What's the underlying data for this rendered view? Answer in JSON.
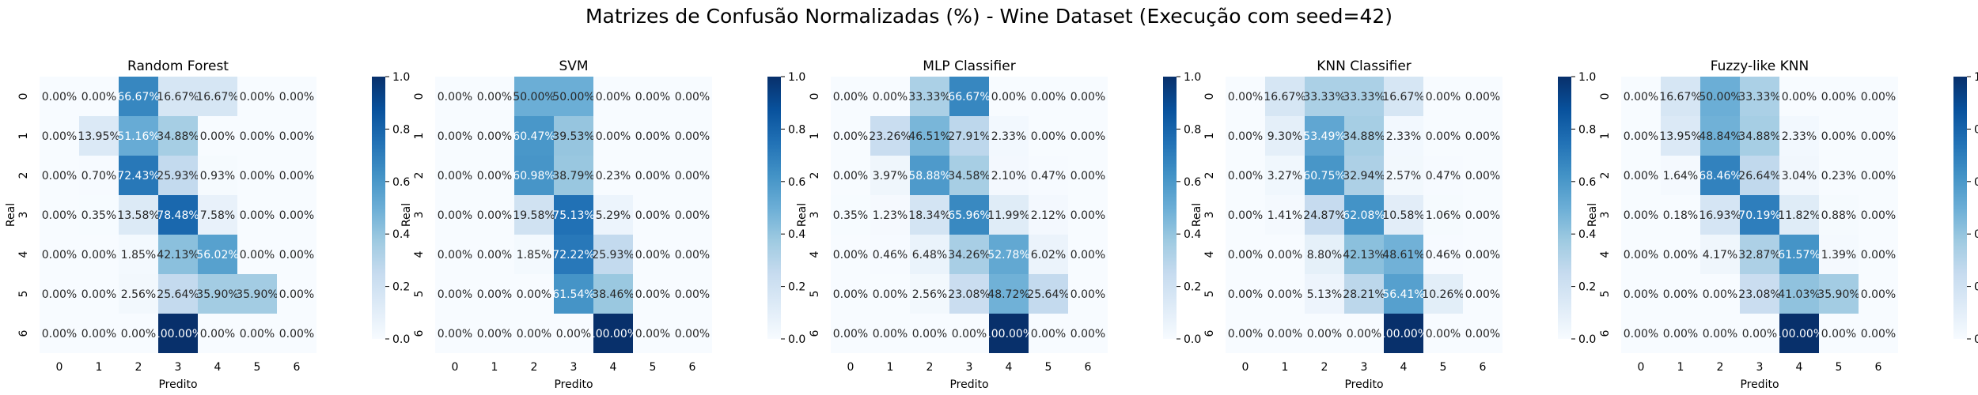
{
  "title": "Matrizes de Confusão Normalizadas (%) - Wine Dataset (Execução com seed=42)",
  "colorscale": {
    "name": "Blues",
    "stops": [
      "#f7fbff",
      "#deebf7",
      "#c6dbef",
      "#9ecae1",
      "#6baed6",
      "#4292c6",
      "#2171b5",
      "#08519c",
      "#08306b"
    ],
    "vmin": 0.0,
    "vmax": 1.0,
    "ticks": [
      "0.0",
      "0.2",
      "0.4",
      "0.6",
      "0.8",
      "1.0"
    ]
  },
  "chart_data": [
    {
      "type": "heatmap",
      "title": "Random Forest",
      "xlabel": "Predito",
      "ylabel": "Real",
      "x": [
        "0",
        "1",
        "2",
        "3",
        "4",
        "5",
        "6"
      ],
      "y": [
        "0",
        "1",
        "2",
        "3",
        "4",
        "5",
        "6"
      ],
      "values": [
        [
          0.0,
          0.0,
          0.6667,
          0.1667,
          0.1667,
          0.0,
          0.0
        ],
        [
          0.0,
          0.1395,
          0.5116,
          0.3488,
          0.0,
          0.0,
          0.0
        ],
        [
          0.0,
          0.007,
          0.7243,
          0.2593,
          0.0093,
          0.0,
          0.0
        ],
        [
          0.0,
          0.0035,
          0.1358,
          0.7848,
          0.0758,
          0.0,
          0.0
        ],
        [
          0.0,
          0.0,
          0.0185,
          0.4213,
          0.5602,
          0.0,
          0.0
        ],
        [
          0.0,
          0.0,
          0.0256,
          0.2564,
          0.359,
          0.359,
          0.0
        ],
        [
          0.0,
          0.0,
          0.0,
          1.0,
          0.0,
          0.0,
          0.0
        ]
      ],
      "labels": [
        [
          "0.00%",
          "0.00%",
          "66.67%",
          "16.67%",
          "16.67%",
          "0.00%",
          "0.00%"
        ],
        [
          "0.00%",
          "13.95%",
          "51.16%",
          "34.88%",
          "0.00%",
          "0.00%",
          "0.00%"
        ],
        [
          "0.00%",
          "0.70%",
          "72.43%",
          "25.93%",
          "0.93%",
          "0.00%",
          "0.00%"
        ],
        [
          "0.00%",
          "0.35%",
          "13.58%",
          "78.48%",
          "7.58%",
          "0.00%",
          "0.00%"
        ],
        [
          "0.00%",
          "0.00%",
          "1.85%",
          "42.13%",
          "56.02%",
          "0.00%",
          "0.00%"
        ],
        [
          "0.00%",
          "0.00%",
          "2.56%",
          "25.64%",
          "35.90%",
          "35.90%",
          "0.00%"
        ],
        [
          "0.00%",
          "0.00%",
          "0.00%",
          "100.00%",
          "0.00%",
          "0.00%",
          "0.00%"
        ]
      ]
    },
    {
      "type": "heatmap",
      "title": "SVM",
      "xlabel": "Predito",
      "ylabel": "Real",
      "x": [
        "0",
        "1",
        "2",
        "3",
        "4",
        "5",
        "6"
      ],
      "y": [
        "0",
        "1",
        "2",
        "3",
        "4",
        "5",
        "6"
      ],
      "values": [
        [
          0.0,
          0.0,
          0.5,
          0.5,
          0.0,
          0.0,
          0.0
        ],
        [
          0.0,
          0.0,
          0.6047,
          0.3953,
          0.0,
          0.0,
          0.0
        ],
        [
          0.0,
          0.0,
          0.6098,
          0.3879,
          0.0023,
          0.0,
          0.0
        ],
        [
          0.0,
          0.0,
          0.1958,
          0.7513,
          0.0529,
          0.0,
          0.0
        ],
        [
          0.0,
          0.0,
          0.0185,
          0.7222,
          0.2593,
          0.0,
          0.0
        ],
        [
          0.0,
          0.0,
          0.0,
          0.6154,
          0.3846,
          0.0,
          0.0
        ],
        [
          0.0,
          0.0,
          0.0,
          0.0,
          1.0,
          0.0,
          0.0
        ]
      ],
      "labels": [
        [
          "0.00%",
          "0.00%",
          "50.00%",
          "50.00%",
          "0.00%",
          "0.00%",
          "0.00%"
        ],
        [
          "0.00%",
          "0.00%",
          "60.47%",
          "39.53%",
          "0.00%",
          "0.00%",
          "0.00%"
        ],
        [
          "0.00%",
          "0.00%",
          "60.98%",
          "38.79%",
          "0.23%",
          "0.00%",
          "0.00%"
        ],
        [
          "0.00%",
          "0.00%",
          "19.58%",
          "75.13%",
          "5.29%",
          "0.00%",
          "0.00%"
        ],
        [
          "0.00%",
          "0.00%",
          "1.85%",
          "72.22%",
          "25.93%",
          "0.00%",
          "0.00%"
        ],
        [
          "0.00%",
          "0.00%",
          "0.00%",
          "61.54%",
          "38.46%",
          "0.00%",
          "0.00%"
        ],
        [
          "0.00%",
          "0.00%",
          "0.00%",
          "0.00%",
          "100.00%",
          "0.00%",
          "0.00%"
        ]
      ]
    },
    {
      "type": "heatmap",
      "title": "MLP Classifier",
      "xlabel": "Predito",
      "ylabel": "Real",
      "x": [
        "0",
        "1",
        "2",
        "3",
        "4",
        "5",
        "6"
      ],
      "y": [
        "0",
        "1",
        "2",
        "3",
        "4",
        "5",
        "6"
      ],
      "values": [
        [
          0.0,
          0.0,
          0.3333,
          0.6667,
          0.0,
          0.0,
          0.0
        ],
        [
          0.0,
          0.2326,
          0.4651,
          0.2791,
          0.0233,
          0.0,
          0.0
        ],
        [
          0.0,
          0.0397,
          0.5888,
          0.3458,
          0.021,
          0.0047,
          0.0
        ],
        [
          0.0035,
          0.0123,
          0.1834,
          0.6596,
          0.1199,
          0.0212,
          0.0
        ],
        [
          0.0,
          0.0046,
          0.0648,
          0.3426,
          0.5278,
          0.0602,
          0.0
        ],
        [
          0.0,
          0.0,
          0.0256,
          0.2308,
          0.4872,
          0.2564,
          0.0
        ],
        [
          0.0,
          0.0,
          0.0,
          0.0,
          1.0,
          0.0,
          0.0
        ]
      ],
      "labels": [
        [
          "0.00%",
          "0.00%",
          "33.33%",
          "66.67%",
          "0.00%",
          "0.00%",
          "0.00%"
        ],
        [
          "0.00%",
          "23.26%",
          "46.51%",
          "27.91%",
          "2.33%",
          "0.00%",
          "0.00%"
        ],
        [
          "0.00%",
          "3.97%",
          "58.88%",
          "34.58%",
          "2.10%",
          "0.47%",
          "0.00%"
        ],
        [
          "0.35%",
          "1.23%",
          "18.34%",
          "65.96%",
          "11.99%",
          "2.12%",
          "0.00%"
        ],
        [
          "0.00%",
          "0.46%",
          "6.48%",
          "34.26%",
          "52.78%",
          "6.02%",
          "0.00%"
        ],
        [
          "0.00%",
          "0.00%",
          "2.56%",
          "23.08%",
          "48.72%",
          "25.64%",
          "0.00%"
        ],
        [
          "0.00%",
          "0.00%",
          "0.00%",
          "0.00%",
          "100.00%",
          "0.00%",
          "0.00%"
        ]
      ]
    },
    {
      "type": "heatmap",
      "title": "KNN Classifier",
      "xlabel": "Predito",
      "ylabel": "Real",
      "x": [
        "0",
        "1",
        "2",
        "3",
        "4",
        "5",
        "6"
      ],
      "y": [
        "0",
        "1",
        "2",
        "3",
        "4",
        "5",
        "6"
      ],
      "values": [
        [
          0.0,
          0.1667,
          0.3333,
          0.3333,
          0.1667,
          0.0,
          0.0
        ],
        [
          0.0,
          0.093,
          0.5349,
          0.3488,
          0.0233,
          0.0,
          0.0
        ],
        [
          0.0,
          0.0327,
          0.6075,
          0.3294,
          0.0257,
          0.0047,
          0.0
        ],
        [
          0.0,
          0.0141,
          0.2487,
          0.6208,
          0.1058,
          0.0106,
          0.0
        ],
        [
          0.0,
          0.0,
          0.088,
          0.4213,
          0.4861,
          0.0046,
          0.0
        ],
        [
          0.0,
          0.0,
          0.0513,
          0.2821,
          0.5641,
          0.1026,
          0.0
        ],
        [
          0.0,
          0.0,
          0.0,
          0.0,
          1.0,
          0.0,
          0.0
        ]
      ],
      "labels": [
        [
          "0.00%",
          "16.67%",
          "33.33%",
          "33.33%",
          "16.67%",
          "0.00%",
          "0.00%"
        ],
        [
          "0.00%",
          "9.30%",
          "53.49%",
          "34.88%",
          "2.33%",
          "0.00%",
          "0.00%"
        ],
        [
          "0.00%",
          "3.27%",
          "60.75%",
          "32.94%",
          "2.57%",
          "0.47%",
          "0.00%"
        ],
        [
          "0.00%",
          "1.41%",
          "24.87%",
          "62.08%",
          "10.58%",
          "1.06%",
          "0.00%"
        ],
        [
          "0.00%",
          "0.00%",
          "8.80%",
          "42.13%",
          "48.61%",
          "0.46%",
          "0.00%"
        ],
        [
          "0.00%",
          "0.00%",
          "5.13%",
          "28.21%",
          "56.41%",
          "10.26%",
          "0.00%"
        ],
        [
          "0.00%",
          "0.00%",
          "0.00%",
          "0.00%",
          "100.00%",
          "0.00%",
          "0.00%"
        ]
      ]
    },
    {
      "type": "heatmap",
      "title": "Fuzzy-like KNN",
      "xlabel": "Predito",
      "ylabel": "Real",
      "x": [
        "0",
        "1",
        "2",
        "3",
        "4",
        "5",
        "6"
      ],
      "y": [
        "0",
        "1",
        "2",
        "3",
        "4",
        "5",
        "6"
      ],
      "values": [
        [
          0.0,
          0.1667,
          0.5,
          0.3333,
          0.0,
          0.0,
          0.0
        ],
        [
          0.0,
          0.1395,
          0.4884,
          0.3488,
          0.0233,
          0.0,
          0.0
        ],
        [
          0.0,
          0.0164,
          0.6846,
          0.2664,
          0.0304,
          0.0023,
          0.0
        ],
        [
          0.0,
          0.0018,
          0.1693,
          0.7019,
          0.1182,
          0.0088,
          0.0
        ],
        [
          0.0,
          0.0,
          0.0417,
          0.3287,
          0.6157,
          0.0139,
          0.0
        ],
        [
          0.0,
          0.0,
          0.0,
          0.2308,
          0.4103,
          0.359,
          0.0
        ],
        [
          0.0,
          0.0,
          0.0,
          0.0,
          1.0,
          0.0,
          0.0
        ]
      ],
      "labels": [
        [
          "0.00%",
          "16.67%",
          "50.00%",
          "33.33%",
          "0.00%",
          "0.00%",
          "0.00%"
        ],
        [
          "0.00%",
          "13.95%",
          "48.84%",
          "34.88%",
          "2.33%",
          "0.00%",
          "0.00%"
        ],
        [
          "0.00%",
          "1.64%",
          "68.46%",
          "26.64%",
          "3.04%",
          "0.23%",
          "0.00%"
        ],
        [
          "0.00%",
          "0.18%",
          "16.93%",
          "70.19%",
          "11.82%",
          "0.88%",
          "0.00%"
        ],
        [
          "0.00%",
          "0.00%",
          "4.17%",
          "32.87%",
          "61.57%",
          "1.39%",
          "0.00%"
        ],
        [
          "0.00%",
          "0.00%",
          "0.00%",
          "23.08%",
          "41.03%",
          "35.90%",
          "0.00%"
        ],
        [
          "0.00%",
          "0.00%",
          "0.00%",
          "0.00%",
          "100.00%",
          "0.00%",
          "0.00%"
        ]
      ]
    }
  ]
}
